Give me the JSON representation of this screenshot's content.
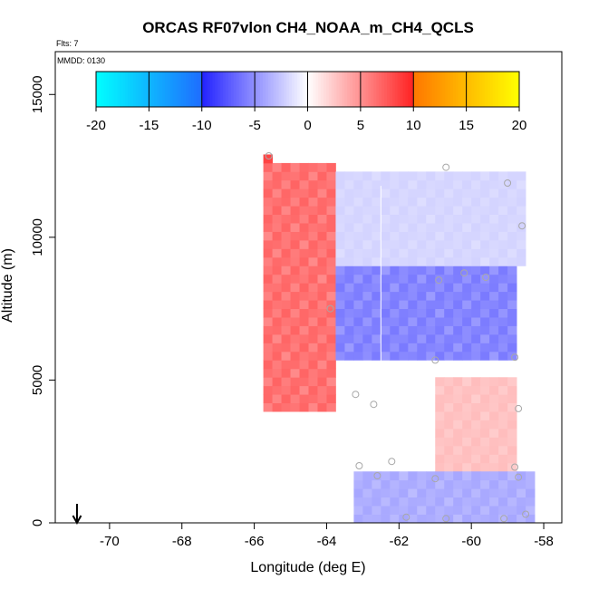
{
  "chart_data": {
    "type": "heatmap",
    "title": "ORCAS RF07vlon CH4_NOAA_m_CH4_QCLS",
    "flights_label": "Flts: 7",
    "mmdd_label": "MMDD: 0130",
    "xlabel": "Longitude (deg E)",
    "ylabel": "Altitude (m)",
    "xlim": [
      -71.5,
      -57.5
    ],
    "ylim": [
      0,
      16500
    ],
    "x_ticks": [
      -70,
      -68,
      -66,
      -64,
      -62,
      -60,
      -58
    ],
    "x_tick_labels": [
      "-70",
      "-68",
      "-66",
      "-64",
      "-62",
      "-60",
      "-58"
    ],
    "y_ticks": [
      0,
      5000,
      10000,
      15000
    ],
    "y_tick_labels": [
      "0",
      "5000",
      "10000",
      "15000"
    ],
    "colorbar": {
      "min": -20,
      "max": 20,
      "ticks": [
        -20,
        -15,
        -10,
        -5,
        0,
        5,
        10,
        15,
        20
      ],
      "tick_labels": [
        "-20",
        "-15",
        "-10",
        "-5",
        "0",
        "5",
        "10",
        "15",
        "20"
      ],
      "colors": {
        "neg_far": "#00ffff",
        "neg_mid": "#1e6dff",
        "neg_near": "#2222ff",
        "zero": "#ffffff",
        "pos_near": "#ff2222",
        "pos_mid": "#ff7700",
        "pos_far": "#ffff00"
      }
    },
    "cell_size": {
      "lon": 0.25,
      "alt": 300
    },
    "regions": [
      {
        "name": "upper-left-positive-edge",
        "lon_range": [
          -65.75,
          -63.75
        ],
        "alt_range": [
          3900,
          12600
        ],
        "value": 7
      },
      {
        "name": "upper-tip",
        "lon_range": [
          -65.75,
          -65.5
        ],
        "alt_range": [
          12600,
          12900
        ],
        "value": 11
      },
      {
        "name": "upper-negative-core",
        "lon_range": [
          -63.75,
          -58.75
        ],
        "alt_range": [
          5700,
          9000
        ],
        "value": -6
      },
      {
        "name": "upper-weak-negative",
        "lon_range": [
          -63.75,
          -58.5
        ],
        "alt_range": [
          9000,
          12300
        ],
        "value": -2
      },
      {
        "name": "mid-positive-east",
        "lon_range": [
          -61.0,
          -58.75
        ],
        "alt_range": [
          1800,
          5100
        ],
        "value": 3
      },
      {
        "name": "boundary-layer-negative",
        "lon_range": [
          -63.25,
          -58.25
        ],
        "alt_range": [
          0,
          1800
        ],
        "value": -4
      }
    ],
    "profile_line_lon": -62.5,
    "profile_line_alt_range": [
      3900,
      11800
    ],
    "sample_points": [
      {
        "lon": -65.6,
        "alt": 12850
      },
      {
        "lon": -60.7,
        "alt": 12450
      },
      {
        "lon": -59.0,
        "alt": 11900
      },
      {
        "lon": -58.6,
        "alt": 10400
      },
      {
        "lon": -60.2,
        "alt": 8750
      },
      {
        "lon": -60.9,
        "alt": 8500
      },
      {
        "lon": -59.6,
        "alt": 8600
      },
      {
        "lon": -63.9,
        "alt": 7500
      },
      {
        "lon": -61.0,
        "alt": 5700
      },
      {
        "lon": -58.8,
        "alt": 5800
      },
      {
        "lon": -63.2,
        "alt": 4500
      },
      {
        "lon": -62.7,
        "alt": 4150
      },
      {
        "lon": -58.7,
        "alt": 4000
      },
      {
        "lon": -63.1,
        "alt": 2000
      },
      {
        "lon": -62.2,
        "alt": 2150
      },
      {
        "lon": -62.6,
        "alt": 1650
      },
      {
        "lon": -61.0,
        "alt": 1550
      },
      {
        "lon": -58.8,
        "alt": 1950
      },
      {
        "lon": -58.7,
        "alt": 1600
      },
      {
        "lon": -61.8,
        "alt": 200
      },
      {
        "lon": -60.7,
        "alt": 150
      },
      {
        "lon": -59.1,
        "alt": 150
      },
      {
        "lon": -58.5,
        "alt": 300
      }
    ],
    "start_marker_lon": -70.9
  }
}
